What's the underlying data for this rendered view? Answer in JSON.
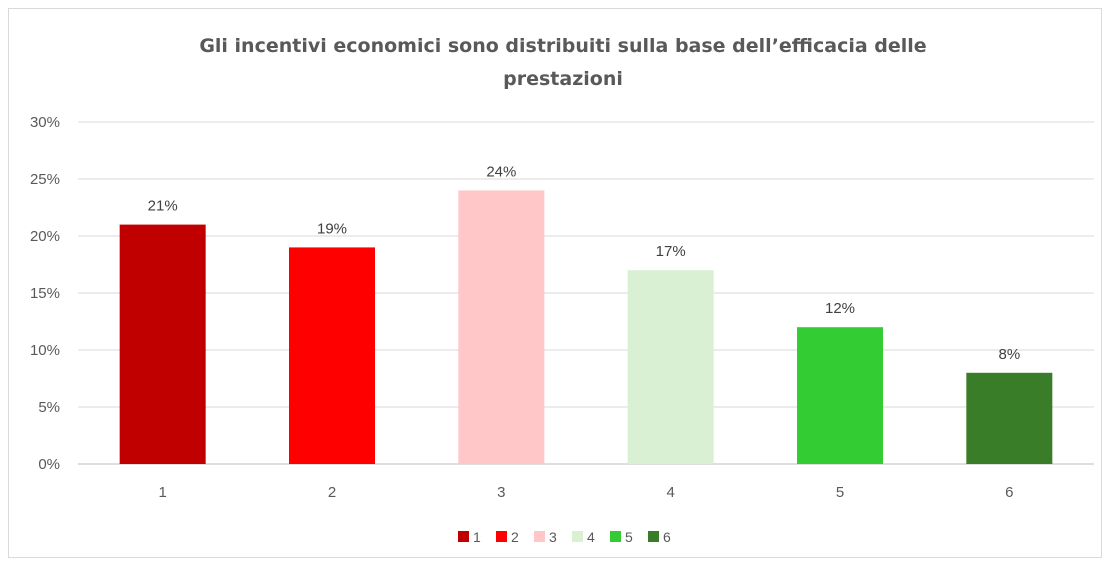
{
  "chart_data": {
    "type": "bar",
    "title_lines": [
      "Gli incentivi economici sono distribuiti sulla base dell’efficacia delle",
      "prestazioni"
    ],
    "categories": [
      "1",
      "2",
      "3",
      "4",
      "5",
      "6"
    ],
    "values": [
      0.21,
      0.19,
      0.24,
      0.17,
      0.12,
      0.08
    ],
    "value_labels": [
      "21%",
      "19%",
      "24%",
      "17%",
      "12%",
      "8%"
    ],
    "colors": [
      "#c00000",
      "#ff0000",
      "#ffc7c7",
      "#d9f0d3",
      "#33cc33",
      "#3a7d28"
    ],
    "ylim": [
      0,
      0.3
    ],
    "yticks": [
      0,
      0.05,
      0.1,
      0.15,
      0.2,
      0.25,
      0.3
    ],
    "ytick_labels": [
      "0%",
      "5%",
      "10%",
      "15%",
      "20%",
      "25%",
      "30%"
    ],
    "grid": true,
    "legend": {
      "position": "bottom",
      "entries": [
        "1",
        "2",
        "3",
        "4",
        "5",
        "6"
      ]
    }
  }
}
